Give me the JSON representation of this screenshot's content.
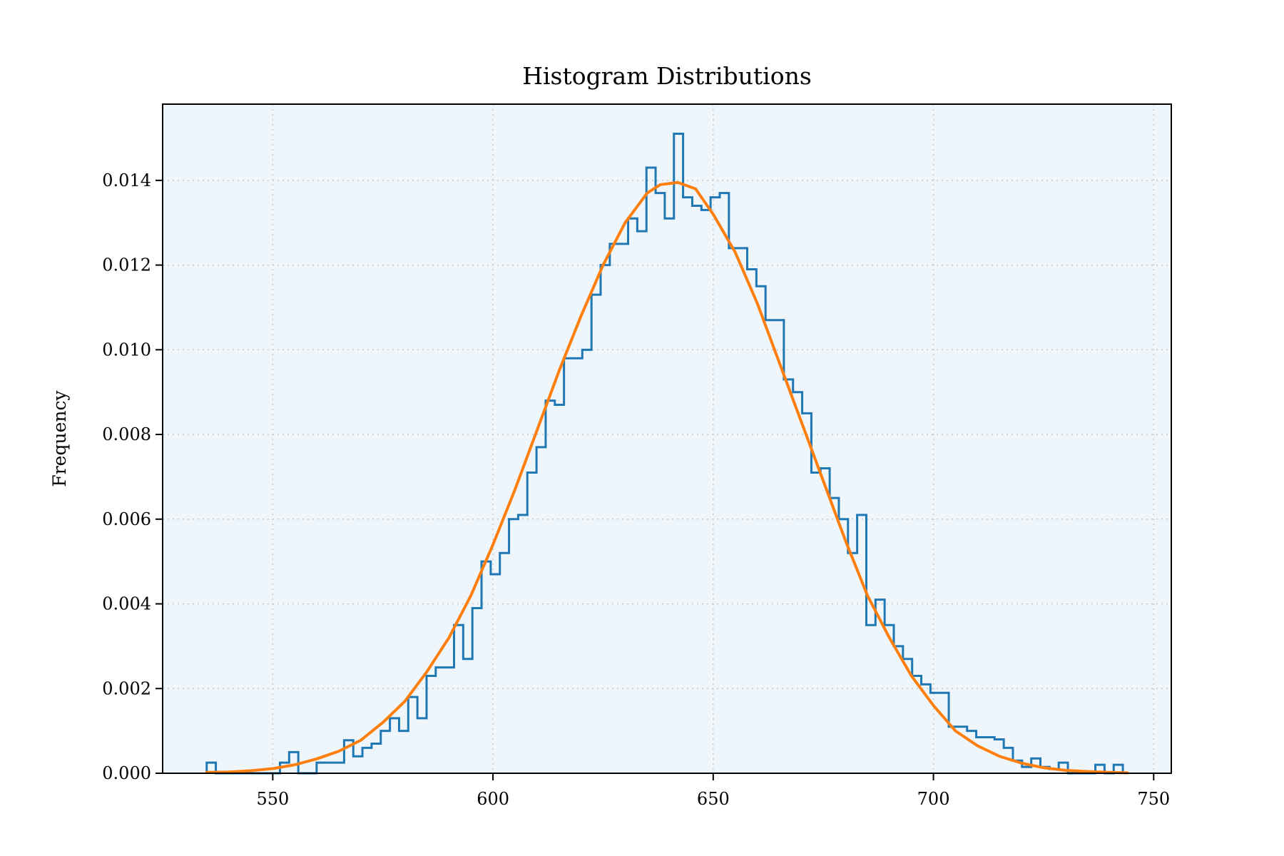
{
  "chart_data": {
    "type": "histogram",
    "title": "Histogram Distributions",
    "xlabel": "",
    "ylabel": "Frequency",
    "xlim": [
      525,
      754
    ],
    "ylim": [
      0,
      0.0158
    ],
    "xticks": [
      550,
      600,
      650,
      700,
      750
    ],
    "xtick_labels": [
      "550",
      "600",
      "650",
      "700",
      "750"
    ],
    "yticks": [
      0,
      0.002,
      0.004,
      0.006,
      0.008,
      0.01,
      0.012,
      0.014
    ],
    "ytick_labels": [
      "0.000",
      "0.002",
      "0.004",
      "0.006",
      "0.008",
      "0.010",
      "0.012",
      "0.014"
    ],
    "grid": true,
    "colors": {
      "background": "#eef6fc",
      "histogram": "#1f77b4",
      "curve": "#ff7f0e",
      "grid": "#c8c8c8"
    },
    "series": [
      {
        "type": "histogram-step",
        "bin_start": 535,
        "bin_width": 2.08,
        "values": [
          0.00025,
          0.0,
          0.0,
          0.0,
          0.0,
          0.0,
          0.0,
          0.0,
          0.00025,
          0.0005,
          0.0,
          0.0,
          0.00025,
          0.00025,
          0.00025,
          0.00078,
          0.0004,
          0.0006,
          0.0007,
          0.001,
          0.0013,
          0.001,
          0.0018,
          0.0013,
          0.0023,
          0.0025,
          0.0025,
          0.0035,
          0.0027,
          0.0039,
          0.005,
          0.0047,
          0.0052,
          0.006,
          0.0061,
          0.0071,
          0.0077,
          0.0088,
          0.0087,
          0.0098,
          0.0098,
          0.01,
          0.0113,
          0.012,
          0.0125,
          0.0125,
          0.0131,
          0.0128,
          0.0143,
          0.0137,
          0.0131,
          0.0151,
          0.0136,
          0.0134,
          0.0133,
          0.0136,
          0.0137,
          0.0124,
          0.0124,
          0.0119,
          0.0115,
          0.0107,
          0.0107,
          0.0093,
          0.009,
          0.0085,
          0.0071,
          0.0072,
          0.0065,
          0.006,
          0.0052,
          0.0061,
          0.0035,
          0.0041,
          0.0035,
          0.003,
          0.0027,
          0.0023,
          0.0021,
          0.0019,
          0.0019,
          0.0011,
          0.0011,
          0.001,
          0.00085,
          0.00085,
          0.0008,
          0.0006,
          0.0003,
          0.00015,
          0.00035,
          0.00015,
          0.0001,
          0.00025,
          0.0,
          0.0,
          0.0,
          0.0002,
          0.0,
          0.0002
        ]
      },
      {
        "type": "line",
        "x": [
          535,
          540,
          545,
          550,
          555,
          560,
          565,
          570,
          575,
          580,
          585,
          590,
          595,
          600,
          605,
          610,
          615,
          620,
          625,
          630,
          635,
          638,
          642,
          646,
          650,
          655,
          660,
          665,
          670,
          675,
          680,
          685,
          690,
          695,
          700,
          705,
          710,
          715,
          720,
          725,
          730,
          735,
          740,
          744
        ],
        "y": [
          2e-05,
          3e-05,
          6e-05,
          0.00011,
          0.0002,
          0.00034,
          0.00052,
          0.00078,
          0.0012,
          0.0017,
          0.0024,
          0.0032,
          0.0042,
          0.0054,
          0.0067,
          0.0081,
          0.0095,
          0.0108,
          0.012,
          0.013,
          0.0137,
          0.0139,
          0.01395,
          0.0138,
          0.0132,
          0.0123,
          0.0111,
          0.0097,
          0.0083,
          0.0069,
          0.0055,
          0.0042,
          0.0032,
          0.0023,
          0.0016,
          0.001,
          0.00065,
          0.0004,
          0.00024,
          0.00013,
          7e-05,
          4e-05,
          2e-05,
          1e-05
        ]
      }
    ]
  }
}
